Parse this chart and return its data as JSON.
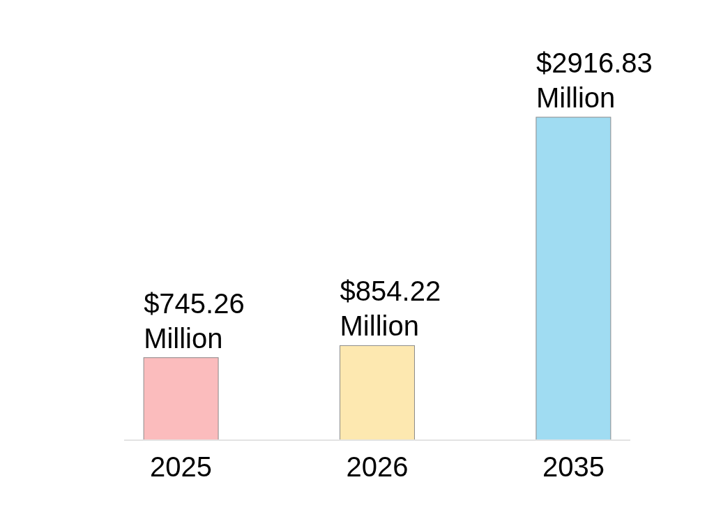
{
  "chart_data": {
    "type": "bar",
    "categories": [
      "2025",
      "2026",
      "2035"
    ],
    "values": [
      745.26,
      854.22,
      2916.83
    ],
    "colors": [
      "#fbbcbd",
      "#fde8b0",
      "#a0dcf2"
    ],
    "value_labels": [
      "$745.26 Million",
      "$854.22 Million",
      "$2916.83 Million"
    ]
  }
}
